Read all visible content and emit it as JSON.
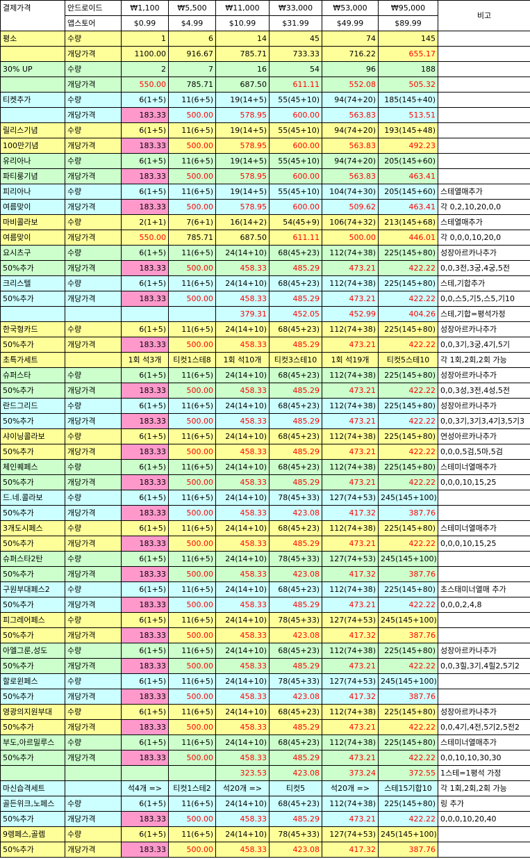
{
  "header": {
    "col0": "결제가격",
    "row1": [
      "안드로이드",
      "₩1,100",
      "₩5,500",
      "₩11,000",
      "₩33,000",
      "₩53,000",
      "₩95,000"
    ],
    "row2": [
      "앱스토어",
      "$0.99",
      "$4.99",
      "$10.99",
      "$31.99",
      "$49.99",
      "$89.99"
    ],
    "note": "비고"
  },
  "colors": {
    "yellow": "#ffff99",
    "green": "#ccffcc",
    "cyan": "#ccffff",
    "pink": "#ff99cc",
    "red_text": "#ff0000"
  },
  "rows": [
    {
      "bg": "Y",
      "a": "평소",
      "b": "수량",
      "v": [
        "1",
        "6",
        "14",
        "45",
        "74",
        "145"
      ],
      "n": ""
    },
    {
      "bg": "Y",
      "a": "",
      "b": "개당가격",
      "v": [
        "1100.00",
        "916.67",
        "785.71",
        "733.33",
        "716.22",
        "655.17"
      ],
      "red": [
        5
      ],
      "n": ""
    },
    {
      "bg": "G",
      "a": "30% UP",
      "b": "수량",
      "v": [
        "2",
        "7",
        "16",
        "54",
        "96",
        "188"
      ],
      "n": ""
    },
    {
      "bg": "G",
      "a": "",
      "b": "개당가격",
      "v": [
        "550.00",
        "785.71",
        "687.50",
        "611.11",
        "552.08",
        "505.32"
      ],
      "red": [
        0,
        3,
        4,
        5
      ],
      "n": ""
    },
    {
      "bg": "C",
      "a": "티켓추가",
      "b": "수량",
      "v": [
        "6(1+5)",
        "11(6+5)",
        "19(14+5)",
        "55(45+10)",
        "94(74+20)",
        "185(145+40)"
      ],
      "n": ""
    },
    {
      "bg": "C",
      "a": "",
      "b": "개당가격",
      "v": [
        "183.33",
        "500.00",
        "578.95",
        "600.00",
        "563.83",
        "513.51"
      ],
      "pink": [
        0
      ],
      "red": [
        1,
        2,
        3,
        4,
        5
      ],
      "n": ""
    },
    {
      "bg": "Y",
      "a": "릴리스기념",
      "b": "수량",
      "v": [
        "6(1+5)",
        "11(6+5)",
        "19(14+5)",
        "55(45+10)",
        "94(74+20)",
        "193(145+48)"
      ],
      "n": ""
    },
    {
      "bg": "Y",
      "a": "100만기념",
      "b": "개당가격",
      "v": [
        "183.33",
        "500.00",
        "578.95",
        "600.00",
        "563.83",
        "492.23"
      ],
      "pink": [
        0
      ],
      "red": [
        1,
        2,
        3,
        4,
        5
      ],
      "n": ""
    },
    {
      "bg": "G",
      "a": "유리아나",
      "b": "수량",
      "v": [
        "6(1+5)",
        "11(6+5)",
        "19(14+5)",
        "55(45+10)",
        "94(74+20)",
        "205(145+60)"
      ],
      "n": ""
    },
    {
      "bg": "G",
      "a": "파티룽기념",
      "b": "개당가격",
      "v": [
        "183.33",
        "500.00",
        "578.95",
        "600.00",
        "563.83",
        "463.41"
      ],
      "pink": [
        0
      ],
      "red": [
        1,
        2,
        3,
        4,
        5
      ],
      "n": ""
    },
    {
      "bg": "C",
      "a": "피리아나",
      "b": "수량",
      "v": [
        "6(1+5)",
        "11(6+5)",
        "19(14+5)",
        "55(45+10)",
        "104(74+30)",
        "205(145+60)"
      ],
      "n": "스테열매추가"
    },
    {
      "bg": "C",
      "a": "여름맞이",
      "b": "개당가격",
      "v": [
        "183.33",
        "500.00",
        "578.95",
        "600.00",
        "509.62",
        "463.41"
      ],
      "pink": [
        0
      ],
      "red": [
        1,
        2,
        3,
        4,
        5
      ],
      "n": "각 0,2,10,20,0,0"
    },
    {
      "bg": "Y",
      "a": "마비콜라보",
      "b": "수량",
      "v": [
        "2(1+1)",
        "7(6+1)",
        "16(14+2)",
        "54(45+9)",
        "106(74+32)",
        "213(145+68)"
      ],
      "n": "스테열매추가"
    },
    {
      "bg": "Y",
      "a": "여름맞이",
      "b": "개당가격",
      "v": [
        "550.00",
        "785.71",
        "687.50",
        "611.11",
        "500.00",
        "446.01"
      ],
      "red": [
        0,
        3,
        4,
        5
      ],
      "n": "각 0,0,0,10,20,0"
    },
    {
      "bg": "G",
      "a": "요시츠구",
      "b": "수량",
      "v": [
        "6(1+5)",
        "11(6+5)",
        "24(14+10)",
        "68(45+23)",
        "112(74+38)",
        "225(145+80)"
      ],
      "n": "성장아르카나추가"
    },
    {
      "bg": "G",
      "a": "50%추가",
      "b": "개당가격",
      "v": [
        "183.33",
        "500.00",
        "458.33",
        "485.29",
        "473.21",
        "422.22"
      ],
      "pink": [
        0
      ],
      "red": [
        1,
        2,
        3,
        4,
        5
      ],
      "n": "0,0,3전,3궁,4궁,5전"
    },
    {
      "bg": "C",
      "a": "크리스텔",
      "b": "수량",
      "v": [
        "6(1+5)",
        "11(6+5)",
        "24(14+10)",
        "68(45+23)",
        "112(74+38)",
        "225(145+80)"
      ],
      "n": "스테,기합추가"
    },
    {
      "bg": "C",
      "a": "50%추가",
      "b": "개당가격",
      "v": [
        "183.33",
        "500.00",
        "458.33",
        "485.29",
        "473.21",
        "422.22"
      ],
      "pink": [
        0
      ],
      "red": [
        1,
        2,
        3,
        4,
        5
      ],
      "n": "0,0,스5,기5,스5,기10"
    },
    {
      "bg": "C",
      "a": "",
      "b": "",
      "v": [
        "",
        "",
        "379.31",
        "452.05",
        "452.99",
        "404.26"
      ],
      "red": [
        2,
        3,
        4,
        5
      ],
      "n": "스테,기합=평석가정"
    },
    {
      "bg": "Y",
      "a": "한국형카드",
      "b": "수량",
      "v": [
        "6(1+5)",
        "11(6+5)",
        "24(14+10)",
        "68(45+23)",
        "112(74+38)",
        "225(145+80)"
      ],
      "n": "성장아르카나추가"
    },
    {
      "bg": "Y",
      "a": "50%추가",
      "b": "개당가격",
      "v": [
        "183.33",
        "500.00",
        "458.33",
        "485.29",
        "473.21",
        "422.22"
      ],
      "pink": [
        0
      ],
      "red": [
        1,
        2,
        3,
        4,
        5
      ],
      "n": "0,0,3기,3궁,4기,5기"
    },
    {
      "bg": "Y",
      "a": "초특가세트",
      "b": "",
      "v": [
        "1회 석3개",
        "티컷1스테8",
        "1회 석10개",
        "티컷3스테10",
        "1회 석19개",
        "티컷5스테10"
      ],
      "center": true,
      "n": "각 1회,2회,2회 가능"
    },
    {
      "bg": "G",
      "a": "슈퍼스타",
      "b": "수량",
      "v": [
        "6(1+5)",
        "11(6+5)",
        "24(14+10)",
        "68(45+23)",
        "112(74+38)",
        "225(145+80)"
      ],
      "n": "성장아르카나추가"
    },
    {
      "bg": "G",
      "a": "50%추가",
      "b": "개당가격",
      "v": [
        "183.33",
        "500.00",
        "458.33",
        "485.29",
        "473.21",
        "422.22"
      ],
      "pink": [
        0
      ],
      "red": [
        1,
        2,
        3,
        4,
        5
      ],
      "n": "0,0,3성,3전,4성,5전"
    },
    {
      "bg": "C",
      "a": "란드그리드",
      "b": "수량",
      "v": [
        "6(1+5)",
        "11(6+5)",
        "24(14+10)",
        "68(45+23)",
        "112(74+38)",
        "225(145+80)"
      ],
      "n": "성장아르카나추가"
    },
    {
      "bg": "C",
      "a": "50%추가",
      "b": "개당가격",
      "v": [
        "183.33",
        "500.00",
        "458.33",
        "485.29",
        "473.21",
        "422.22"
      ],
      "pink": [
        0
      ],
      "red": [
        1,
        2,
        3,
        4,
        5
      ],
      "n": "0,0,3기,3기3,4기3,5기3"
    },
    {
      "bg": "Y",
      "a": "샤이닝콜라보",
      "b": "수량",
      "v": [
        "6(1+5)",
        "11(6+5)",
        "24(14+10)",
        "68(45+23)",
        "112(74+38)",
        "225(145+80)"
      ],
      "n": "연성아르카나추가"
    },
    {
      "bg": "Y",
      "a": "50%추가",
      "b": "개당가격",
      "v": [
        "183.33",
        "500.00",
        "458.33",
        "485.29",
        "473.21",
        "422.22"
      ],
      "pink": [
        0
      ],
      "red": [
        1,
        2,
        3,
        4,
        5
      ],
      "n": "0,0,0,5검,5마,5검"
    },
    {
      "bg": "G",
      "a": "체인퀘페스",
      "b": "수량",
      "v": [
        "6(1+5)",
        "11(6+5)",
        "24(14+10)",
        "68(45+23)",
        "112(74+38)",
        "225(145+80)"
      ],
      "n": "스테미너열매추가"
    },
    {
      "bg": "G",
      "a": "50%추가",
      "b": "개당가격",
      "v": [
        "183.33",
        "500.00",
        "458.33",
        "485.29",
        "473.21",
        "422.22"
      ],
      "pink": [
        0
      ],
      "red": [
        1,
        2,
        3,
        4,
        5
      ],
      "n": "0,0,0,10,15,25"
    },
    {
      "bg": "C",
      "a": "드.네.콜라보",
      "b": "수량",
      "v": [
        "6(1+5)",
        "11(6+5)",
        "24(14+10)",
        "78(45+33)",
        "127(74+53)",
        "245(145+100)"
      ],
      "n": ""
    },
    {
      "bg": "C",
      "a": "50%추가",
      "b": "개당가격",
      "v": [
        "183.33",
        "500.00",
        "458.33",
        "423.08",
        "417.32",
        "387.76"
      ],
      "pink": [
        0
      ],
      "red": [
        1,
        2,
        3,
        4,
        5
      ],
      "n": ""
    },
    {
      "bg": "Y",
      "a": "3개도시페스",
      "b": "수량",
      "v": [
        "6(1+5)",
        "11(6+5)",
        "24(14+10)",
        "68(45+23)",
        "112(74+38)",
        "225(145+80)"
      ],
      "n": "스테미너열매추가"
    },
    {
      "bg": "Y",
      "a": "50%추가",
      "b": "개당가격",
      "v": [
        "183.33",
        "500.00",
        "458.33",
        "485.29",
        "473.21",
        "422.22"
      ],
      "pink": [
        0
      ],
      "red": [
        1,
        2,
        3,
        4,
        5
      ],
      "n": "0,0,0,10,15,25"
    },
    {
      "bg": "G",
      "a": "슈퍼스타2탄",
      "b": "수량",
      "v": [
        "6(1+5)",
        "11(6+5)",
        "24(14+10)",
        "78(45+33)",
        "127(74+53)",
        "245(145+100)"
      ],
      "n": ""
    },
    {
      "bg": "G",
      "a": "50%추가",
      "b": "개당가격",
      "v": [
        "183.33",
        "500.00",
        "458.33",
        "423.08",
        "417.32",
        "387.76"
      ],
      "pink": [
        0
      ],
      "red": [
        1,
        2,
        3,
        4,
        5
      ],
      "n": ""
    },
    {
      "bg": "C",
      "a": "구원부대페스2",
      "b": "수량",
      "v": [
        "6(1+5)",
        "11(6+5)",
        "24(14+10)",
        "68(45+23)",
        "112(74+38)",
        "225(145+80)"
      ],
      "n": "초스태미너열매 추가"
    },
    {
      "bg": "C",
      "a": "50%추가",
      "b": "개당가격",
      "v": [
        "183.33",
        "500.00",
        "458.33",
        "485.29",
        "473.21",
        "422.22"
      ],
      "pink": [
        0
      ],
      "red": [
        1,
        2,
        3,
        4,
        5
      ],
      "n": "0,0,0,2,4,8"
    },
    {
      "bg": "Y",
      "a": "피그레어페스",
      "b": "수량",
      "v": [
        "6(1+5)",
        "11(6+5)",
        "24(14+10)",
        "78(45+33)",
        "127(74+53)",
        "245(145+100)"
      ],
      "n": ""
    },
    {
      "bg": "Y",
      "a": "50%추가",
      "b": "개당가격",
      "v": [
        "183.33",
        "500.00",
        "458.33",
        "423.08",
        "417.32",
        "387.76"
      ],
      "pink": [
        0
      ],
      "red": [
        1,
        2,
        3,
        4,
        5
      ],
      "n": ""
    },
    {
      "bg": "G",
      "a": "아엘그룬,성도",
      "b": "수량",
      "v": [
        "6(1+5)",
        "11(6+5)",
        "24(14+10)",
        "68(45+23)",
        "112(74+38)",
        "225(145+80)"
      ],
      "n": "성장아르카나추가"
    },
    {
      "bg": "G",
      "a": "50%추가",
      "b": "개당가격",
      "v": [
        "183.33",
        "500.00",
        "458.33",
        "485.29",
        "473.21",
        "422.22"
      ],
      "pink": [
        0
      ],
      "red": [
        1,
        2,
        3,
        4,
        5
      ],
      "n": "0,0,3힐,3기,4힐2,5기2"
    },
    {
      "bg": "C",
      "a": "할로윈페스",
      "b": "수량",
      "v": [
        "6(1+5)",
        "11(6+5)",
        "24(14+10)",
        "78(45+33)",
        "127(74+53)",
        "245(145+100)"
      ],
      "n": ""
    },
    {
      "bg": "C",
      "a": "50%추가",
      "b": "개당가격",
      "v": [
        "183.33",
        "500.00",
        "458.33",
        "423.08",
        "417.32",
        "387.76"
      ],
      "pink": [
        0
      ],
      "red": [
        1,
        2,
        3,
        4,
        5
      ],
      "n": ""
    },
    {
      "bg": "Y",
      "a": "영광의지원부대",
      "b": "수량",
      "v": [
        "6(1+5)",
        "11(6+5)",
        "24(14+10)",
        "68(45+23)",
        "112(74+38)",
        "225(145+80)"
      ],
      "n": "성장아르카나추가"
    },
    {
      "bg": "Y",
      "a": "50%추가",
      "b": "개당가격",
      "v": [
        "183.33",
        "500.00",
        "458.33",
        "485.29",
        "473.21",
        "422.22"
      ],
      "pink": [
        0
      ],
      "red": [
        1,
        2,
        3,
        4,
        5
      ],
      "n": "0,0,4기,4전,5기2,5전2"
    },
    {
      "bg": "G",
      "a": "부도,아르밀루스",
      "b": "수량",
      "v": [
        "6(1+5)",
        "11(6+5)",
        "24(14+10)",
        "68(45+23)",
        "112(74+38)",
        "225(145+80)"
      ],
      "n": "스테미너열매추가"
    },
    {
      "bg": "G",
      "a": "50%추가",
      "b": "개당가격",
      "v": [
        "183.33",
        "500.00",
        "458.33",
        "485.29",
        "473.21",
        "422.22"
      ],
      "pink": [
        0
      ],
      "red": [
        1,
        2,
        3,
        4,
        5
      ],
      "n": "0,0,10,10,30,30"
    },
    {
      "bg": "G",
      "a": "",
      "b": "",
      "v": [
        "",
        "",
        "323.53",
        "423.08",
        "373.24",
        "372.55"
      ],
      "red": [
        2,
        3,
        4,
        5
      ],
      "n": "1스테=1평석 가정"
    },
    {
      "bg": "C",
      "a": "마신습격세트",
      "b": "",
      "v": [
        "석4개 =>",
        "티컷1스테2",
        "석20개 =>",
        "티컷5",
        "석20개 =>",
        "스테15기합10"
      ],
      "center": true,
      "n": "각 1회,2회,2회 가능"
    },
    {
      "bg": "C",
      "a": "골든위크,노페스",
      "b": "수량",
      "v": [
        "6(1+5)",
        "11(6+5)",
        "24(14+10)",
        "68(45+23)",
        "112(74+38)",
        "225(145+80)"
      ],
      "n": "링 추가"
    },
    {
      "bg": "C",
      "a": "50%추가",
      "b": "개당가격",
      "v": [
        "183.33",
        "500.00",
        "458.33",
        "485.29",
        "473.21",
        "422.22"
      ],
      "pink": [
        0
      ],
      "red": [
        1,
        2,
        3,
        4,
        5
      ],
      "n": "0,0,0,10,20,40"
    },
    {
      "bg": "Y",
      "a": "9렝페스,골렘",
      "b": "수량",
      "v": [
        "6(1+5)",
        "11(6+5)",
        "24(14+10)",
        "78(45+33)",
        "127(74+53)",
        "245(145+100)"
      ],
      "n": ""
    },
    {
      "bg": "Y",
      "a": "50%추가",
      "b": "개당가격",
      "v": [
        "183.33",
        "500.00",
        "458.33",
        "423.08",
        "417.32",
        "387.76"
      ],
      "pink": [
        0
      ],
      "red": [
        1,
        2,
        3,
        4,
        5
      ],
      "n": ""
    }
  ]
}
